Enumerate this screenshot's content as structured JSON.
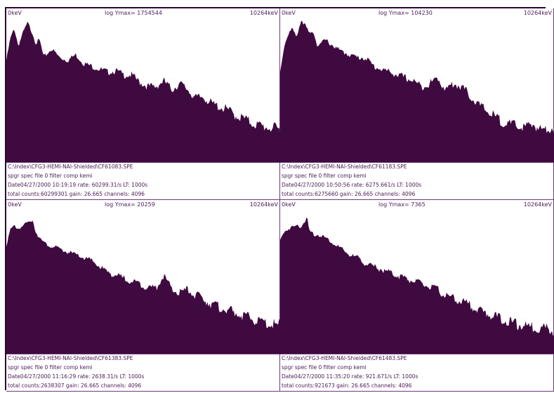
{
  "colors": {
    "fill": "#3f0a3f",
    "text": "#4a1a55",
    "border": "#6b3a7a"
  },
  "panels": [
    {
      "left_label": "0keV",
      "center_label": "log Ymax= 1754544",
      "right_label": "10264keV",
      "info": [
        "C:\\Index\\CFG3-HEMI-NAI-Shielded\\CF61083.SPE",
        "spgr spec file 0 filter comp kemi",
        "Date04/27/2000 10:19:19 rate: 60299.31/s LT: 1000s",
        "total counts:60299301 gain: 26.665 channels: 4096"
      ]
    },
    {
      "left_label": "0keV",
      "center_label": "log Ymax= 104230",
      "right_label": "10264keV",
      "info": [
        "C:\\Index\\CFG3-HEMI-NAI-Shielded\\CF61183.SPE",
        "spgr spec file 0 filter comp kemi",
        "Date04/27/2000 10:50:56 rate: 6275.661/s LT: 1000s",
        "total counts:6275660 gain: 26.665 channels: 4096"
      ]
    },
    {
      "left_label": "0keV",
      "center_label": "log Ymax= 20259",
      "right_label": "10264keV",
      "info": [
        "C:\\Index\\CFG3-HEMI-NAI-Shielded\\CF61383.SPE",
        "spgr spec file 0 filter comp kemi",
        "Date04/27/2000 11:16:29 rate: 2638.31/s LT: 1000s",
        "total counts:2638307 gain: 26.665 channels: 4096"
      ]
    },
    {
      "left_label": "0keV",
      "center_label": "log Ymax= 7365",
      "right_label": "10264keV",
      "info": [
        "C:\\Index\\CFG3-HEMI-NAI-Shielded\\CF61483.SPE",
        "spgr spec file 0 filter comp kemi",
        "Date04/27/2000 11:35:20 rate: 921.671/s LT: 1000s",
        "total counts:921673 gain: 26.665 channels: 4096"
      ]
    }
  ],
  "chart_data": [
    {
      "type": "area",
      "title": "log Ymax= 1754544",
      "xlabel": "",
      "ylabel": "",
      "xlim": [
        0,
        10264
      ],
      "ylim": [
        0,
        1
      ],
      "scale": "log",
      "x": [
        0,
        150,
        300,
        450,
        600,
        800,
        1000,
        1100,
        1250,
        1400,
        1700,
        2000,
        2300,
        2600,
        2900,
        3200,
        3500,
        3800,
        4100,
        4400,
        4700,
        5000,
        5300,
        5600,
        5900,
        6200,
        6500,
        6800,
        7100,
        7400,
        7700,
        8000,
        8300,
        8600,
        8900,
        9200,
        9500,
        9800,
        10100,
        10264
      ],
      "y": [
        0.7,
        0.85,
        0.92,
        0.8,
        0.88,
        0.96,
        0.88,
        0.82,
        0.84,
        0.72,
        0.78,
        0.72,
        0.7,
        0.74,
        0.68,
        0.66,
        0.64,
        0.62,
        0.63,
        0.6,
        0.6,
        0.55,
        0.52,
        0.52,
        0.56,
        0.5,
        0.54,
        0.5,
        0.44,
        0.45,
        0.4,
        0.38,
        0.36,
        0.32,
        0.3,
        0.27,
        0.25,
        0.24,
        0.23,
        0.22
      ]
    },
    {
      "type": "area",
      "title": "log Ymax= 104230",
      "xlabel": "",
      "ylabel": "",
      "xlim": [
        0,
        10264
      ],
      "ylim": [
        0,
        1
      ],
      "scale": "log",
      "x": [
        0,
        150,
        300,
        450,
        600,
        800,
        1000,
        1100,
        1250,
        1400,
        1700,
        2000,
        2300,
        2600,
        2900,
        3200,
        3500,
        3800,
        4100,
        4400,
        4700,
        5000,
        5300,
        5600,
        5900,
        6200,
        6500,
        6800,
        7100,
        7400,
        7700,
        8000,
        8300,
        8600,
        8900,
        9200,
        9500,
        9800,
        10100,
        10264
      ],
      "y": [
        0.62,
        0.8,
        0.88,
        0.92,
        0.86,
        0.98,
        0.92,
        0.88,
        0.9,
        0.8,
        0.84,
        0.8,
        0.76,
        0.74,
        0.72,
        0.72,
        0.66,
        0.64,
        0.62,
        0.6,
        0.58,
        0.56,
        0.52,
        0.54,
        0.58,
        0.5,
        0.54,
        0.52,
        0.46,
        0.4,
        0.36,
        0.32,
        0.28,
        0.26,
        0.25,
        0.24,
        0.26,
        0.22,
        0.24,
        0.23
      ]
    },
    {
      "type": "area",
      "title": "log Ymax= 20259",
      "xlabel": "",
      "ylabel": "",
      "xlim": [
        0,
        10264
      ],
      "ylim": [
        0,
        1
      ],
      "scale": "log",
      "x": [
        0,
        150,
        300,
        450,
        600,
        800,
        1000,
        1100,
        1250,
        1400,
        1700,
        2000,
        2300,
        2600,
        2900,
        3200,
        3500,
        3800,
        4100,
        4400,
        4700,
        5000,
        5300,
        5600,
        5900,
        6200,
        6500,
        6800,
        7100,
        7400,
        7700,
        8000,
        8300,
        8600,
        8900,
        9200,
        9500,
        9800,
        10100,
        10264
      ],
      "y": [
        0.75,
        0.85,
        0.88,
        0.86,
        0.88,
        0.9,
        0.92,
        0.84,
        0.8,
        0.76,
        0.74,
        0.72,
        0.7,
        0.68,
        0.66,
        0.64,
        0.6,
        0.56,
        0.54,
        0.52,
        0.5,
        0.48,
        0.46,
        0.45,
        0.54,
        0.44,
        0.42,
        0.44,
        0.4,
        0.38,
        0.34,
        0.32,
        0.3,
        0.28,
        0.26,
        0.24,
        0.22,
        0.21,
        0.2,
        0.2
      ]
    },
    {
      "type": "area",
      "title": "log Ymax= 7365",
      "xlabel": "",
      "ylabel": "",
      "xlim": [
        0,
        10264
      ],
      "ylim": [
        0,
        1
      ],
      "scale": "log",
      "x": [
        0,
        150,
        300,
        450,
        600,
        800,
        1000,
        1100,
        1250,
        1400,
        1700,
        2000,
        2300,
        2600,
        2900,
        3200,
        3500,
        3800,
        4100,
        4400,
        4700,
        5000,
        5300,
        5600,
        5900,
        6200,
        6500,
        6800,
        7100,
        7400,
        7700,
        8000,
        8300,
        8600,
        8900,
        9200,
        9500,
        9800,
        10100,
        10264
      ],
      "y": [
        0.78,
        0.84,
        0.86,
        0.87,
        0.88,
        0.88,
        0.94,
        0.84,
        0.82,
        0.82,
        0.8,
        0.76,
        0.72,
        0.68,
        0.66,
        0.62,
        0.6,
        0.58,
        0.56,
        0.54,
        0.52,
        0.5,
        0.48,
        0.46,
        0.44,
        0.4,
        0.38,
        0.36,
        0.34,
        0.3,
        0.28,
        0.26,
        0.24,
        0.22,
        0.2,
        0.19,
        0.18,
        0.18,
        0.17,
        0.16
      ]
    }
  ]
}
